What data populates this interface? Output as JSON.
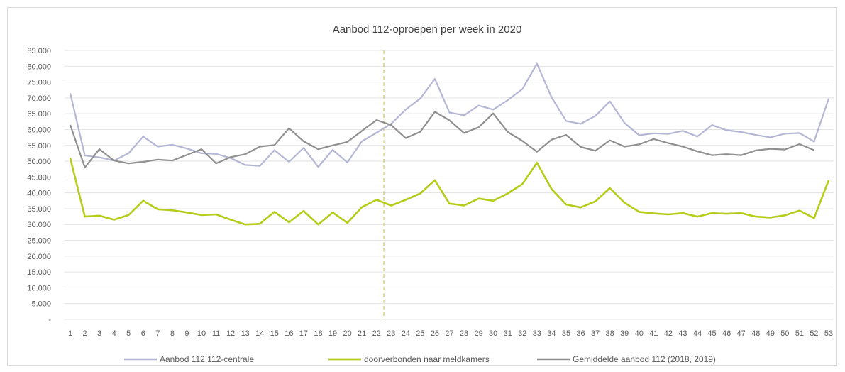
{
  "chart_data": {
    "type": "line",
    "title": "Aanbod 112-oproepen per week in 2020",
    "xlabel": "",
    "ylabel": "",
    "categories": [
      "1",
      "2",
      "3",
      "4",
      "5",
      "6",
      "7",
      "8",
      "9",
      "10",
      "11",
      "12",
      "13",
      "14",
      "15",
      "16",
      "17",
      "18",
      "19",
      "20",
      "21",
      "22",
      "23",
      "24",
      "25",
      "26",
      "27",
      "28",
      "29",
      "30",
      "31",
      "32",
      "33",
      "34",
      "35",
      "36",
      "37",
      "38",
      "39",
      "40",
      "41",
      "42",
      "43",
      "44",
      "45",
      "46",
      "47",
      "48",
      "49",
      "50",
      "51",
      "52",
      "53"
    ],
    "ylim": [
      0,
      85000
    ],
    "y_ticks": [
      0,
      5000,
      10000,
      15000,
      20000,
      25000,
      30000,
      35000,
      40000,
      45000,
      50000,
      55000,
      60000,
      65000,
      70000,
      75000,
      80000,
      85000
    ],
    "y_tick_labels": [
      "-",
      "5.000",
      "10.000",
      "15.000",
      "20.000",
      "25.000",
      "30.000",
      "35.000",
      "40.000",
      "45.000",
      "50.000",
      "55.000",
      "60.000",
      "65.000",
      "70.000",
      "75.000",
      "80.000",
      "85.000"
    ],
    "grid": true,
    "legend_position": "bottom",
    "marker_line": {
      "category": "22.5",
      "color": "#d6c26a",
      "style": "dashed"
    },
    "series": [
      {
        "name": "Aanbod 112 112-centrale",
        "color": "#b4b6d6",
        "values": [
          71500,
          51800,
          51200,
          50200,
          52500,
          57800,
          54600,
          55200,
          54000,
          52500,
          52300,
          51000,
          48800,
          48500,
          53500,
          49800,
          54200,
          48200,
          53600,
          49600,
          56300,
          59000,
          61800,
          66300,
          69800,
          76000,
          65400,
          64500,
          67600,
          66300,
          69300,
          72800,
          80800,
          70200,
          62700,
          61800,
          64300,
          68900,
          62100,
          58200,
          58800,
          58600,
          59600,
          57800,
          61400,
          59800,
          59200,
          58300,
          57500,
          58700,
          58900,
          56200,
          69800
        ]
      },
      {
        "name": "doorverbonden naar meldkamers",
        "color": "#b5cc18",
        "values": [
          51000,
          32500,
          32800,
          31500,
          33000,
          37500,
          34800,
          34500,
          33800,
          33000,
          33200,
          31500,
          30000,
          30200,
          34000,
          30700,
          34300,
          30000,
          33800,
          30500,
          35500,
          37800,
          36000,
          37800,
          39800,
          44000,
          36600,
          36000,
          38200,
          37500,
          39800,
          42800,
          49500,
          41200,
          36300,
          35400,
          37300,
          41500,
          36900,
          34000,
          33500,
          33200,
          33600,
          32500,
          33600,
          33400,
          33600,
          32500,
          32200,
          32900,
          34400,
          32000,
          44000
        ]
      },
      {
        "name": "Gemiddelde aanbod 112 (2018, 2019)",
        "color": "#909090",
        "values": [
          61500,
          48000,
          53800,
          50200,
          49300,
          49800,
          50500,
          50200,
          52000,
          53800,
          49300,
          51300,
          52200,
          54600,
          55100,
          60400,
          56300,
          53800,
          55000,
          56100,
          59600,
          63000,
          61400,
          57300,
          59300,
          65600,
          62900,
          58900,
          60700,
          65100,
          59200,
          56400,
          53000,
          56800,
          58300,
          54500,
          53300,
          56600,
          54600,
          55300,
          57000,
          55700,
          54600,
          53100,
          51900,
          52200,
          51900,
          53400,
          53900,
          53700,
          55400,
          53500,
          null
        ]
      }
    ]
  }
}
